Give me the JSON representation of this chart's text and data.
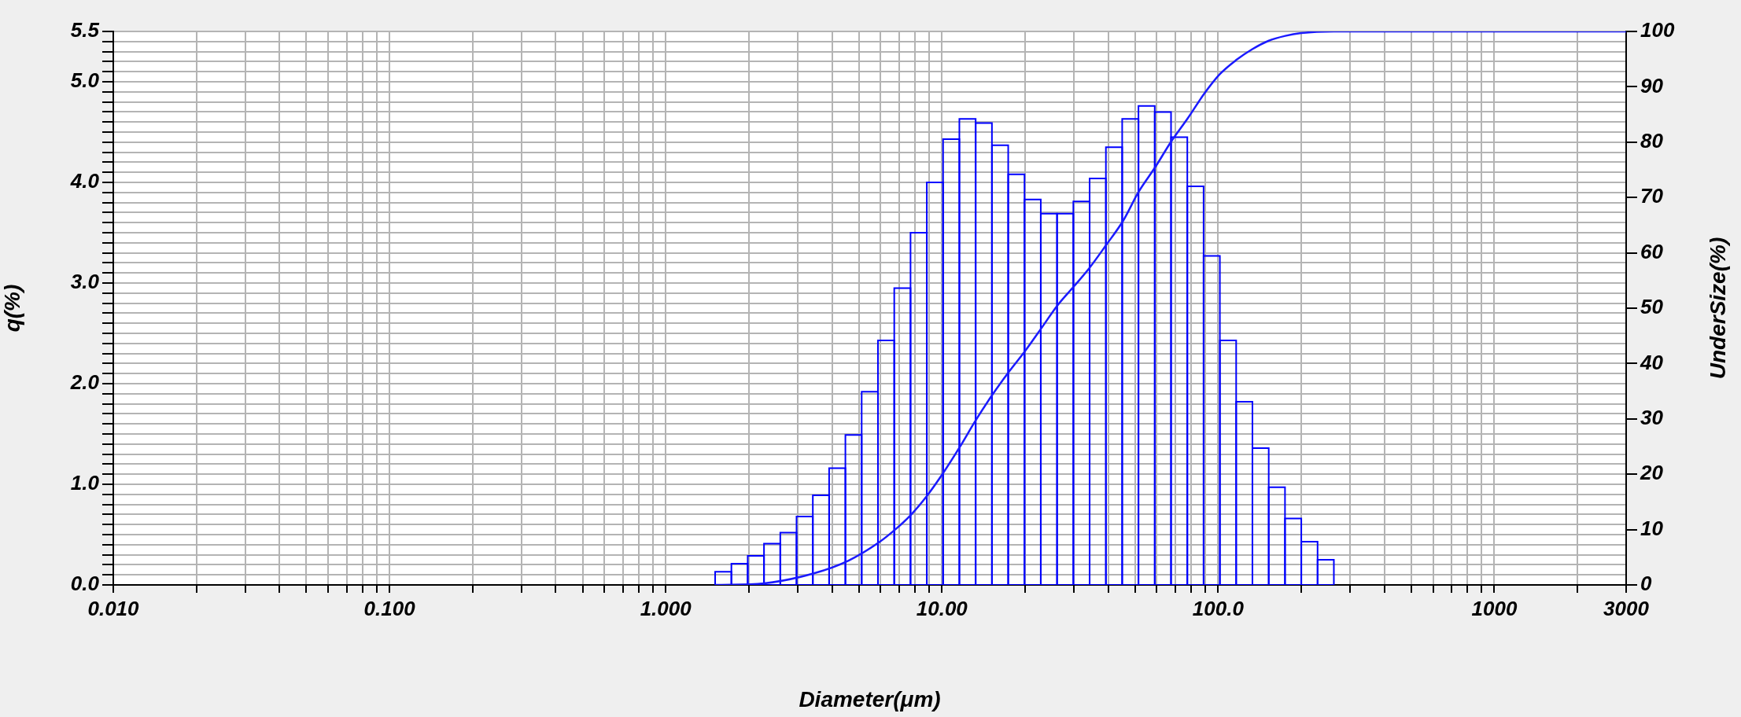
{
  "chart_data": {
    "type": "histogram",
    "xlabel": "Diameter(μm)",
    "ylabel": "q(%)",
    "y2label": "UnderSize(%)",
    "log": "x",
    "grid": true,
    "xlim": [
      0.01,
      3000
    ],
    "ylim": [
      0,
      5.5
    ],
    "y2lim": [
      0,
      100
    ],
    "xticks": [
      {
        "value": 0.01,
        "label": "0.010"
      },
      {
        "value": 0.02,
        "label": null
      },
      {
        "value": 0.03,
        "label": null
      },
      {
        "value": 0.04,
        "label": null
      },
      {
        "value": 0.05,
        "label": null
      },
      {
        "value": 0.06,
        "label": null
      },
      {
        "value": 0.07,
        "label": null
      },
      {
        "value": 0.08,
        "label": null
      },
      {
        "value": 0.09,
        "label": null
      },
      {
        "value": 0.1,
        "label": "0.100"
      },
      {
        "value": 0.2,
        "label": null
      },
      {
        "value": 0.3,
        "label": null
      },
      {
        "value": 0.4,
        "label": null
      },
      {
        "value": 0.5,
        "label": null
      },
      {
        "value": 0.6,
        "label": null
      },
      {
        "value": 0.7,
        "label": null
      },
      {
        "value": 0.8,
        "label": null
      },
      {
        "value": 0.9,
        "label": null
      },
      {
        "value": 1,
        "label": "1.000"
      },
      {
        "value": 2,
        "label": null
      },
      {
        "value": 3,
        "label": null
      },
      {
        "value": 4,
        "label": null
      },
      {
        "value": 5,
        "label": null
      },
      {
        "value": 6,
        "label": null
      },
      {
        "value": 7,
        "label": null
      },
      {
        "value": 8,
        "label": null
      },
      {
        "value": 9,
        "label": null
      },
      {
        "value": 10,
        "label": "10.00"
      },
      {
        "value": 20,
        "label": null
      },
      {
        "value": 30,
        "label": null
      },
      {
        "value": 40,
        "label": null
      },
      {
        "value": 50,
        "label": null
      },
      {
        "value": 60,
        "label": null
      },
      {
        "value": 70,
        "label": null
      },
      {
        "value": 80,
        "label": null
      },
      {
        "value": 90,
        "label": null
      },
      {
        "value": 100,
        "label": "100.0"
      },
      {
        "value": 200,
        "label": null
      },
      {
        "value": 300,
        "label": null
      },
      {
        "value": 400,
        "label": null
      },
      {
        "value": 500,
        "label": null
      },
      {
        "value": 600,
        "label": null
      },
      {
        "value": 700,
        "label": null
      },
      {
        "value": 800,
        "label": null
      },
      {
        "value": 900,
        "label": null
      },
      1000,
      {
        "value": 2000,
        "label": null
      },
      3000
    ],
    "yticks": [
      {
        "value": 0,
        "label": "0.0"
      },
      {
        "value": 0.1,
        "label": null
      },
      {
        "value": 0.2,
        "label": null
      },
      {
        "value": 0.3,
        "label": null
      },
      {
        "value": 0.4,
        "label": null
      },
      {
        "value": 0.5,
        "label": null
      },
      {
        "value": 0.6,
        "label": null
      },
      {
        "value": 0.7,
        "label": null
      },
      {
        "value": 0.8,
        "label": null
      },
      {
        "value": 0.9,
        "label": null
      },
      {
        "value": 1,
        "label": "1.0"
      },
      {
        "value": 1.1,
        "label": null
      },
      {
        "value": 1.2,
        "label": null
      },
      {
        "value": 1.3,
        "label": null
      },
      {
        "value": 1.4,
        "label": null
      },
      {
        "value": 1.5,
        "label": null
      },
      {
        "value": 1.6,
        "label": null
      },
      {
        "value": 1.7,
        "label": null
      },
      {
        "value": 1.8,
        "label": null
      },
      {
        "value": 1.9,
        "label": null
      },
      {
        "value": 2,
        "label": "2.0"
      },
      {
        "value": 2.1,
        "label": null
      },
      {
        "value": 2.2,
        "label": null
      },
      {
        "value": 2.3,
        "label": null
      },
      {
        "value": 2.4,
        "label": null
      },
      {
        "value": 2.5,
        "label": null
      },
      {
        "value": 2.6,
        "label": null
      },
      {
        "value": 2.7,
        "label": null
      },
      {
        "value": 2.8,
        "label": null
      },
      {
        "value": 2.9,
        "label": null
      },
      {
        "value": 3,
        "label": "3.0"
      },
      {
        "value": 3.1,
        "label": null
      },
      {
        "value": 3.2,
        "label": null
      },
      {
        "value": 3.3,
        "label": null
      },
      {
        "value": 3.4,
        "label": null
      },
      {
        "value": 3.5,
        "label": null
      },
      {
        "value": 3.6,
        "label": null
      },
      {
        "value": 3.7,
        "label": null
      },
      {
        "value": 3.8,
        "label": null
      },
      {
        "value": 3.9,
        "label": null
      },
      {
        "value": 4,
        "label": "4.0"
      },
      {
        "value": 4.1,
        "label": null
      },
      {
        "value": 4.2,
        "label": null
      },
      {
        "value": 4.3,
        "label": null
      },
      {
        "value": 4.4,
        "label": null
      },
      {
        "value": 4.5,
        "label": null
      },
      {
        "value": 4.6,
        "label": null
      },
      {
        "value": 4.7,
        "label": null
      },
      {
        "value": 4.8,
        "label": null
      },
      {
        "value": 4.9,
        "label": null
      },
      {
        "value": 5,
        "label": "5.0"
      },
      {
        "value": 5.1,
        "label": null
      },
      {
        "value": 5.2,
        "label": null
      },
      {
        "value": 5.3,
        "label": null
      },
      {
        "value": 5.4,
        "label": null
      },
      {
        "value": 5.5,
        "label": "5.5"
      }
    ],
    "y2ticks": [
      0,
      10,
      20,
      30,
      40,
      50,
      60,
      70,
      80,
      90,
      100
    ],
    "color": "#0000ff",
    "bins": [
      1.51,
      1.729,
      1.981,
      2.269,
      2.599,
      2.976,
      3.409,
      3.905,
      4.472,
      5.122,
      5.867,
      6.72,
      7.697,
      8.816,
      10.097,
      11.565,
      13.246,
      15.172,
      17.377,
      19.904,
      22.797,
      26.111,
      29.907,
      34.255,
      39.234,
      44.938,
      51.471,
      58.953,
      67.523,
      77.339,
      88.583,
      101.46,
      116.21,
      133.1,
      152.45,
      174.61,
      200,
      229.08,
      262.38
    ],
    "values": [
      0.13,
      0.21,
      0.29,
      0.41,
      0.52,
      0.68,
      0.89,
      1.16,
      1.49,
      1.92,
      2.43,
      2.95,
      3.5,
      4.0,
      4.43,
      4.63,
      4.59,
      4.37,
      4.08,
      3.83,
      3.69,
      3.69,
      3.81,
      4.04,
      4.35,
      4.63,
      4.76,
      4.7,
      4.45,
      3.96,
      3.27,
      2.43,
      1.82,
      1.36,
      0.97,
      0.66,
      0.43,
      0.25
    ],
    "series": [
      {
        "type": "line",
        "axis": "y2",
        "color": "#1a1aff",
        "x": [
          1.51,
          2.27,
          3.44,
          4.59,
          5.88,
          6.77,
          7.7,
          8.86,
          10.1,
          11.6,
          13.2,
          15.2,
          17.3,
          19.9,
          23.0,
          26.1,
          30.0,
          34.0,
          39.3,
          45.3,
          51.5,
          59.4,
          67.4,
          77.6,
          88.9,
          101.5,
          116,
          133,
          152,
          175,
          200,
          262,
          3000
        ],
        "values": [
          0,
          0.3,
          2.1,
          4.4,
          7.6,
          10.0,
          12.6,
          16.2,
          20.2,
          24.9,
          29.6,
          34.3,
          38.2,
          42.1,
          46.5,
          50.4,
          53.9,
          57.1,
          61.4,
          65.8,
          71.0,
          75.6,
          80.0,
          84.3,
          88.7,
          92.3,
          94.8,
          96.8,
          98.3,
          99.2,
          99.7,
          100,
          100
        ]
      }
    ]
  }
}
